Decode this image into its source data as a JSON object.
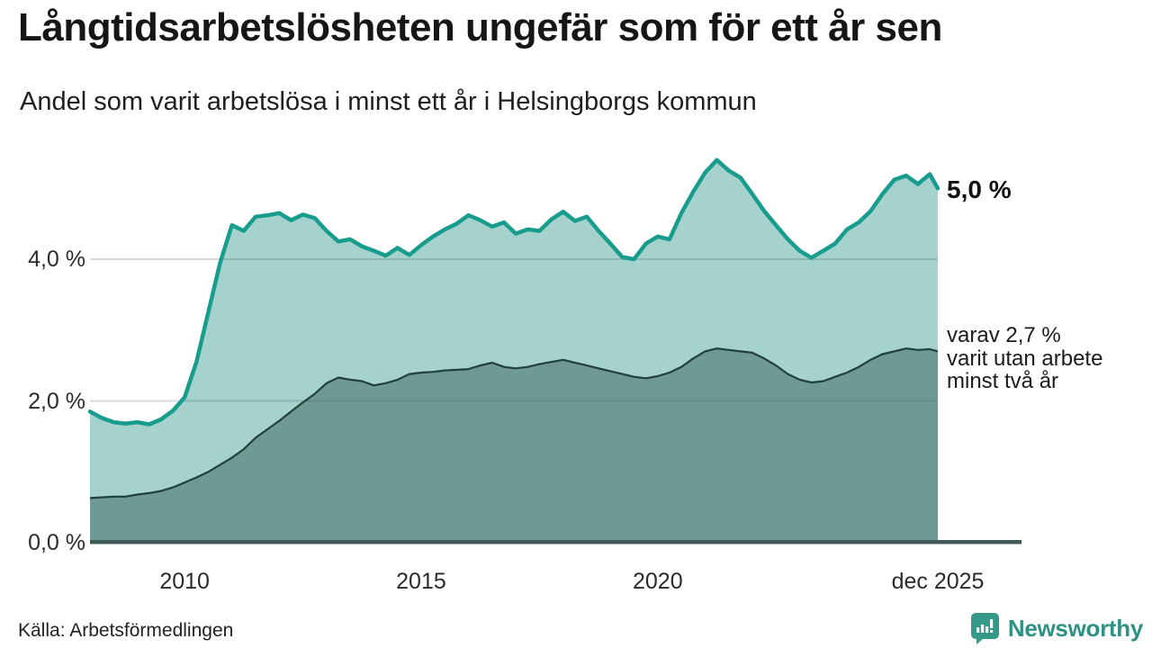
{
  "header": {
    "title": "Långtidsarbetslösheten ungefär som för ett år sen",
    "subtitle": "Andel som varit arbetslösa i minst ett år i Helsingborgs kommun"
  },
  "annotations": {
    "end_value_label": "5,0 %",
    "secondary_label": "varav 2,7 %\nvarit utan arbete\nminst två år"
  },
  "footer": {
    "source": "Källa: Arbetsförmedlingen",
    "brand_name": "Newsworthy"
  },
  "colors": {
    "total_line": "#179c8d",
    "total_fill": "#a5d2cc",
    "two_year_line": "#21403b",
    "two_year_fill": "#6f9a94",
    "baseline": "#3d5a56",
    "gridline": "rgba(55,80,77,0.20)",
    "brand_teal": "#35998a"
  },
  "chart_data": {
    "type": "area",
    "title": "Långtidsarbetslösheten ungefär som för ett år sen",
    "subtitle": "Andel som varit arbetslösa i minst ett år i Helsingborgs kommun",
    "source": "Källa: Arbetsförmedlingen",
    "unit": "%",
    "x_range": [
      2008,
      2025.92
    ],
    "y_range": [
      0,
      5.75
    ],
    "x_start": 2008,
    "x_step_years": 0.25,
    "grid": "horizontal",
    "legend_position": "annotations-right",
    "x_ticks": [
      {
        "x": 2010,
        "label": "2010"
      },
      {
        "x": 2015,
        "label": "2015"
      },
      {
        "x": 2020,
        "label": "2020"
      },
      {
        "x": 2025.92,
        "label": "dec 2025"
      }
    ],
    "y_ticks": [
      {
        "v": 0,
        "label": "0,0 %"
      },
      {
        "v": 2,
        "label": "2,0 %"
      },
      {
        "v": 4,
        "label": "4,0 %"
      }
    ],
    "series": [
      {
        "name": "arbetslösa minst ett år",
        "end_label": "5,0 %",
        "end_value": 5.0,
        "values": [
          1.85,
          1.76,
          1.7,
          1.68,
          1.7,
          1.67,
          1.74,
          1.86,
          2.05,
          2.55,
          3.25,
          3.95,
          4.48,
          4.4,
          4.6,
          4.62,
          4.65,
          4.55,
          4.63,
          4.58,
          4.4,
          4.25,
          4.28,
          4.18,
          4.12,
          4.05,
          4.16,
          4.06,
          4.2,
          4.32,
          4.42,
          4.5,
          4.62,
          4.55,
          4.46,
          4.52,
          4.36,
          4.42,
          4.4,
          4.56,
          4.67,
          4.54,
          4.6,
          4.4,
          4.22,
          4.03,
          4.0,
          4.22,
          4.32,
          4.28,
          4.65,
          4.95,
          5.22,
          5.4,
          5.25,
          5.15,
          4.92,
          4.68,
          4.48,
          4.28,
          4.12,
          4.02,
          4.12,
          4.22,
          4.42,
          4.52,
          4.68,
          4.92,
          5.12,
          5.18,
          5.06,
          5.2,
          5.0
        ]
      },
      {
        "name": "varav utan arbete minst två år",
        "end_label": "varav 2,7 % varit utan arbete minst två år",
        "end_value": 2.7,
        "values": [
          0.63,
          0.64,
          0.65,
          0.65,
          0.68,
          0.7,
          0.73,
          0.78,
          0.85,
          0.92,
          1.0,
          1.1,
          1.2,
          1.32,
          1.48,
          1.6,
          1.72,
          1.85,
          1.98,
          2.1,
          2.25,
          2.33,
          2.3,
          2.28,
          2.22,
          2.25,
          2.3,
          2.38,
          2.4,
          2.41,
          2.43,
          2.44,
          2.45,
          2.5,
          2.54,
          2.48,
          2.46,
          2.48,
          2.52,
          2.55,
          2.58,
          2.54,
          2.5,
          2.46,
          2.42,
          2.38,
          2.34,
          2.32,
          2.35,
          2.4,
          2.48,
          2.6,
          2.7,
          2.74,
          2.72,
          2.7,
          2.68,
          2.6,
          2.5,
          2.38,
          2.3,
          2.26,
          2.28,
          2.34,
          2.4,
          2.48,
          2.58,
          2.66,
          2.7,
          2.74,
          2.72,
          2.73,
          2.7
        ]
      }
    ]
  }
}
